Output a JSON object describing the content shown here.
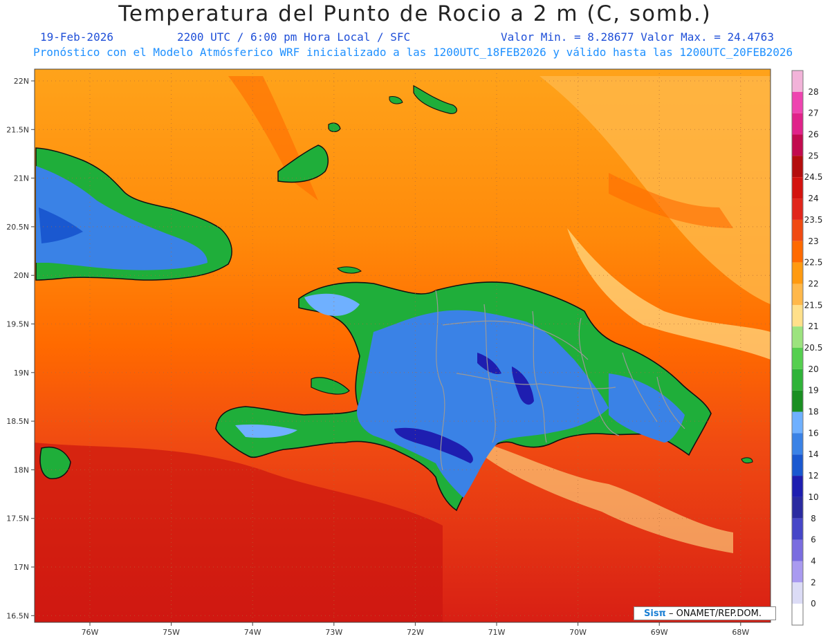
{
  "title": "Temperatura del Punto de Rocio a 2 m (C, somb.)",
  "subtitle": {
    "date": "19-Feb-2026",
    "time": "2200 UTC / 6:00 pm Hora Local / SFC",
    "range": "Valor Min. = 8.28677  Valor Max. = 24.4763"
  },
  "model_line": "Pronóstico con el Modelo Atmósferico WRF inicializado a las 1200UTC_18FEB2026 y válido hasta las  1200UTC_20FEB2026",
  "credit": {
    "brand": "Sisπ",
    "text": "– ONAMET/REP.DOM."
  },
  "colors": {
    "ocean_south": "#e1251b",
    "ocean_mid": "#ff6a00",
    "ocean_north": "#ffa31a",
    "land_green": "#1fae3a",
    "land_blue": "#3a82e6",
    "land_dark": "#2a2aa8"
  },
  "map": {
    "lat_labels": [
      "22N",
      "21.5N",
      "21N",
      "20.5N",
      "20N",
      "19.5N",
      "19N",
      "18.5N",
      "18N",
      "17.5N",
      "17N",
      "16.5N"
    ],
    "lon_labels": [
      "76W",
      "75W",
      "74W",
      "73W",
      "72W",
      "71W",
      "70W",
      "69W",
      "68W"
    ],
    "colorbar": [
      {
        "label": "28",
        "color": "#f2b3d9"
      },
      {
        "label": "27",
        "color": "#ee44b0"
      },
      {
        "label": "26",
        "color": "#e0228a"
      },
      {
        "label": "25",
        "color": "#c20a4e"
      },
      {
        "label": "24.5",
        "color": "#b40d0d"
      },
      {
        "label": "24",
        "color": "#d4130f"
      },
      {
        "label": "23.5",
        "color": "#e1251b"
      },
      {
        "label": "23",
        "color": "#f04a12"
      },
      {
        "label": "22.5",
        "color": "#ff6a00"
      },
      {
        "label": "22",
        "color": "#ff9a10"
      },
      {
        "label": "21.5",
        "color": "#ffb84a"
      },
      {
        "label": "21",
        "color": "#ffe08a"
      },
      {
        "label": "20.5",
        "color": "#9ce37e"
      },
      {
        "label": "20",
        "color": "#55cf4f"
      },
      {
        "label": "19",
        "color": "#2fb338"
      },
      {
        "label": "18",
        "color": "#1a8f22"
      },
      {
        "label": "16",
        "color": "#6fb0ff"
      },
      {
        "label": "14",
        "color": "#3a82e6"
      },
      {
        "label": "12",
        "color": "#1a58d0"
      },
      {
        "label": "10",
        "color": "#1e1eb0"
      },
      {
        "label": "8",
        "color": "#2a2aa0"
      },
      {
        "label": "6",
        "color": "#4646c8"
      },
      {
        "label": "4",
        "color": "#7a6de0"
      },
      {
        "label": "2",
        "color": "#a99af0"
      },
      {
        "label": "0",
        "color": "#dcdcf6"
      },
      {
        "label": "",
        "color": "#ffffff"
      }
    ]
  }
}
